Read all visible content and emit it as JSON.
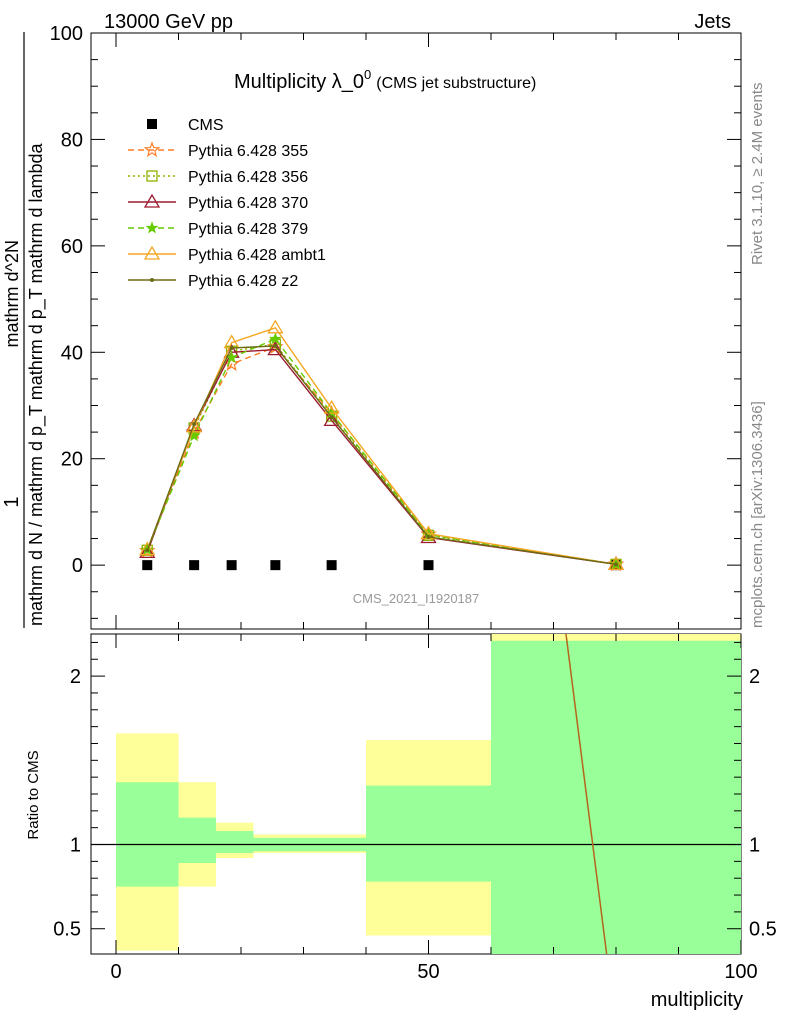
{
  "header": {
    "energy_label": "13000 GeV pp",
    "category_label": "Jets"
  },
  "title": {
    "main": "Multiplicity λ_0",
    "superscript": "0",
    "sub": "(CMS jet substructure)"
  },
  "side_labels": {
    "rivet": "Rivet 3.1.10, ≥ 2.4M events",
    "mcplots": "mcplots.cern.ch [arXiv:1306.3436]"
  },
  "analysis_id": "CMS_2021_I1920187",
  "ylabel_main": {
    "numerator": "1",
    "denominator": "mathrm d N / mathrm d p_T mathrm d p_T mathrm d lambda",
    "right_part": "mathrm d^2N"
  },
  "colors": {
    "cms": "#000000",
    "p355": "#ff7f27",
    "p356": "#8cb400",
    "p370": "#9b1b30",
    "p379": "#66cc00",
    "ambt1": "#f5a623",
    "z2": "#6b6b14",
    "band_inner": "#99ff99",
    "band_outer": "#ffff99"
  },
  "chart_data": [
    {
      "type": "line",
      "panel": "main",
      "x_label": "",
      "ylim": [
        -12,
        100
      ],
      "xlim": [
        -4,
        100
      ],
      "y_ticks": [
        0,
        20,
        40,
        60,
        80,
        100
      ],
      "x": [
        5,
        12.5,
        18.5,
        25.5,
        34.5,
        50,
        80
      ],
      "series": [
        {
          "name": "CMS",
          "marker": "square",
          "values": [
            0,
            0,
            0,
            0,
            0,
            0,
            0
          ]
        },
        {
          "name": "Pythia 6.428 355",
          "marker": "star",
          "dash": "dashed",
          "values": [
            2.7,
            25.0,
            37.8,
            41.0,
            28.5,
            5.8,
            0.15
          ]
        },
        {
          "name": "Pythia 6.428 356",
          "marker": "open-square",
          "dash": "dotted",
          "values": [
            2.8,
            25.8,
            40.2,
            41.5,
            28.0,
            5.6,
            0.15
          ]
        },
        {
          "name": "Pythia 6.428 370",
          "marker": "open-triangle",
          "dash": "solid",
          "values": [
            2.4,
            26.2,
            40.0,
            40.5,
            27.2,
            5.2,
            0.15
          ]
        },
        {
          "name": "Pythia 6.428 379",
          "marker": "star-small",
          "dash": "dashed",
          "values": [
            2.9,
            24.3,
            39.0,
            42.5,
            28.6,
            5.7,
            0.15
          ]
        },
        {
          "name": "Pythia 6.428 ambt1",
          "marker": "open-triangle",
          "dash": "solid",
          "values": [
            2.9,
            26.0,
            41.8,
            44.6,
            29.5,
            5.9,
            0.15
          ]
        },
        {
          "name": "Pythia 6.428 z2",
          "marker": "dot",
          "dash": "solid",
          "values": [
            2.8,
            26.5,
            40.8,
            41.2,
            27.8,
            5.3,
            0.15
          ]
        }
      ]
    },
    {
      "type": "area",
      "panel": "ratio",
      "ylabel": "Ratio to CMS",
      "xlabel": "multiplicity",
      "xlim": [
        -4,
        100
      ],
      "ylim": [
        0.35,
        2.25
      ],
      "y_ticks": [
        0.5,
        1,
        2
      ],
      "x_ticks": [
        0,
        50,
        100
      ],
      "bins": [
        {
          "x0": 0,
          "x1": 10,
          "inner": [
            0.75,
            1.37
          ],
          "outer": [
            0.37,
            1.66
          ]
        },
        {
          "x0": 10,
          "x1": 16,
          "inner": [
            0.89,
            1.16
          ],
          "outer": [
            0.75,
            1.37
          ]
        },
        {
          "x0": 16,
          "x1": 22,
          "inner": [
            0.95,
            1.08
          ],
          "outer": [
            0.92,
            1.13
          ]
        },
        {
          "x0": 22,
          "x1": 30,
          "inner": [
            0.96,
            1.04
          ],
          "outer": [
            0.95,
            1.06
          ]
        },
        {
          "x0": 30,
          "x1": 40,
          "inner": [
            0.96,
            1.04
          ],
          "outer": [
            0.95,
            1.06
          ]
        },
        {
          "x0": 40,
          "x1": 60,
          "inner": [
            0.78,
            1.35
          ],
          "outer": [
            0.46,
            1.62
          ]
        },
        {
          "x0": 60,
          "x1": 100,
          "inner": [
            0.35,
            2.21
          ],
          "outer": [
            0.35,
            2.3
          ]
        }
      ],
      "reference_line": 1,
      "ratio_line": {
        "x": [
          72,
          78.5
        ],
        "y": [
          2.3,
          0.35
        ]
      }
    }
  ]
}
